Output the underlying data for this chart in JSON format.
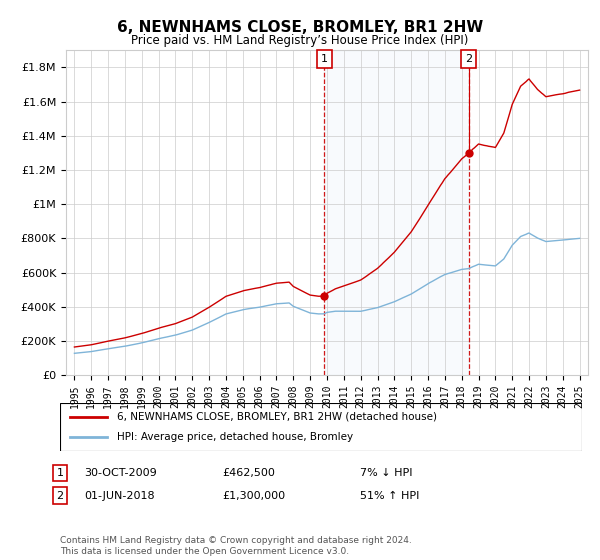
{
  "title": "6, NEWNHAMS CLOSE, BROMLEY, BR1 2HW",
  "subtitle": "Price paid vs. HM Land Registry’s House Price Index (HPI)",
  "property_label": "6, NEWNHAMS CLOSE, BROMLEY, BR1 2HW (detached house)",
  "hpi_label": "HPI: Average price, detached house, Bromley",
  "sale1_date": "30-OCT-2009",
  "sale1_price": 462500,
  "sale1_note": "7% ↓ HPI",
  "sale2_date": "01-JUN-2018",
  "sale2_price": 1300000,
  "sale2_note": "51% ↑ HPI",
  "sale1_x": 2009.83,
  "sale2_x": 2018.42,
  "ylim_min": 0,
  "ylim_max": 1900000,
  "xlim_min": 1994.5,
  "xlim_max": 2025.5,
  "footer": "Contains HM Land Registry data © Crown copyright and database right 2024.\nThis data is licensed under the Open Government Licence v3.0.",
  "background_shade": "#dce9f5",
  "property_color": "#cc0000",
  "hpi_color": "#7fb4d8",
  "grid_color": "#cccccc",
  "sale_marker_color": "#cc0000",
  "yticks": [
    0,
    200000,
    400000,
    600000,
    800000,
    1000000,
    1200000,
    1400000,
    1600000,
    1800000
  ]
}
